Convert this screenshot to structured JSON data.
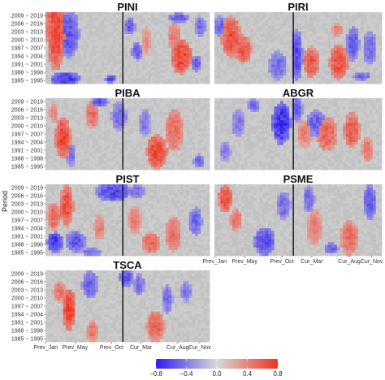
{
  "figure": {
    "ylabel": "Period",
    "background_color": "#ebebeb",
    "cell_gray": "#c8c8c8",
    "divider_color": "#000000"
  },
  "chart_data": {
    "type": "heatmap",
    "panels": [
      {
        "title": "PINI",
        "show_x_ticks": false,
        "show_y_ticks": true
      },
      {
        "title": "PIRI",
        "show_x_ticks": false,
        "show_y_ticks": false
      },
      {
        "title": "PIBA",
        "show_x_ticks": false,
        "show_y_ticks": true
      },
      {
        "title": "ABGR",
        "show_x_ticks": false,
        "show_y_ticks": false
      },
      {
        "title": "PIST",
        "show_x_ticks": false,
        "show_y_ticks": true
      },
      {
        "title": "PSME",
        "show_x_ticks": true,
        "show_y_ticks": false
      },
      {
        "title": "TSCA",
        "show_x_ticks": true,
        "show_y_ticks": true
      }
    ],
    "y_ticks": [
      "2009 ~ 2019",
      "2006 ~ 2016",
      "2003 ~ 2013",
      "2000 ~ 2010",
      "1997 ~ 2007",
      "1994 ~ 2004",
      "1991 ~ 2001",
      "1988 ~ 1998",
      "1985 ~ 1995"
    ],
    "x_ticks": [
      "Prev_Jan",
      "Prev_May",
      "Prev_Oct",
      "Cur_Mar",
      "Cur_Aug",
      "Cur_Nov"
    ],
    "x_positions": [
      0.02,
      2.52,
      5.65,
      8.15,
      11.28,
      13.16
    ],
    "x_range": [
      0,
      14
    ],
    "divider_x": 6.6,
    "blobs": {
      "PINI": [
        {
          "x": 0.9,
          "y": 0.15,
          "w": 0.9,
          "h": 0.55,
          "v": 0.7
        },
        {
          "x": 0.9,
          "y": 0.44,
          "w": 0.75,
          "h": 0.38,
          "v": 0.7
        },
        {
          "x": 2.0,
          "y": 0.3,
          "w": 0.9,
          "h": 0.35,
          "v": -0.6
        },
        {
          "x": 1.7,
          "y": 0.93,
          "w": 1.3,
          "h": 0.1,
          "v": -0.75
        },
        {
          "x": 5.6,
          "y": 0.93,
          "w": 0.5,
          "h": 0.06,
          "v": -0.7
        },
        {
          "x": 7.2,
          "y": 0.2,
          "w": 0.5,
          "h": 0.12,
          "v": -0.55
        },
        {
          "x": 7.8,
          "y": 0.55,
          "w": 0.5,
          "h": 0.13,
          "v": -0.55
        },
        {
          "x": 8.6,
          "y": 0.4,
          "w": 0.4,
          "h": 0.2,
          "v": 0.4
        },
        {
          "x": 11.6,
          "y": 0.62,
          "w": 0.9,
          "h": 0.25,
          "v": 0.75
        },
        {
          "x": 11.0,
          "y": 0.35,
          "w": 0.6,
          "h": 0.2,
          "v": 0.5
        },
        {
          "x": 11.4,
          "y": 0.08,
          "w": 0.9,
          "h": 0.07,
          "v": -0.6
        },
        {
          "x": 12.9,
          "y": 0.72,
          "w": 0.4,
          "h": 0.12,
          "v": -0.55
        },
        {
          "x": 13.2,
          "y": 0.2,
          "w": 0.5,
          "h": 0.15,
          "v": -0.5
        }
      ],
      "PIRI": [
        {
          "x": 1.4,
          "y": 0.35,
          "w": 0.85,
          "h": 0.3,
          "v": 0.7
        },
        {
          "x": 2.4,
          "y": 0.52,
          "w": 0.75,
          "h": 0.2,
          "v": 0.65
        },
        {
          "x": 0.5,
          "y": 0.2,
          "w": 0.6,
          "h": 0.15,
          "v": -0.5
        },
        {
          "x": 6.9,
          "y": 0.6,
          "w": 0.5,
          "h": 0.38,
          "v": -0.65
        },
        {
          "x": 5.3,
          "y": 0.75,
          "w": 0.8,
          "h": 0.2,
          "v": -0.5
        },
        {
          "x": 8.1,
          "y": 0.7,
          "w": 0.7,
          "h": 0.22,
          "v": 0.65
        },
        {
          "x": 10.4,
          "y": 0.7,
          "w": 0.8,
          "h": 0.25,
          "v": 0.7
        },
        {
          "x": 11.6,
          "y": 0.45,
          "w": 0.55,
          "h": 0.25,
          "v": -0.6
        },
        {
          "x": 13.0,
          "y": 0.5,
          "w": 0.6,
          "h": 0.25,
          "v": -0.5
        },
        {
          "x": 10.3,
          "y": 0.25,
          "w": 0.5,
          "h": 0.1,
          "v": 0.5
        },
        {
          "x": 12.3,
          "y": 0.9,
          "w": 0.8,
          "h": 0.06,
          "v": -0.55
        }
      ],
      "PIBA": [
        {
          "x": 1.5,
          "y": 0.55,
          "w": 0.7,
          "h": 0.3,
          "v": 0.75
        },
        {
          "x": 0.7,
          "y": 0.2,
          "w": 0.4,
          "h": 0.15,
          "v": 0.45
        },
        {
          "x": 2.2,
          "y": 0.8,
          "w": 0.4,
          "h": 0.18,
          "v": -0.5
        },
        {
          "x": 4.0,
          "y": 0.22,
          "w": 0.6,
          "h": 0.2,
          "v": 0.55
        },
        {
          "x": 4.6,
          "y": 0.05,
          "w": 0.8,
          "h": 0.07,
          "v": -0.6
        },
        {
          "x": 6.3,
          "y": 0.25,
          "w": 0.7,
          "h": 0.2,
          "v": -0.5
        },
        {
          "x": 9.5,
          "y": 0.75,
          "w": 0.9,
          "h": 0.25,
          "v": 0.75
        },
        {
          "x": 11.0,
          "y": 0.45,
          "w": 0.8,
          "h": 0.3,
          "v": 0.55
        },
        {
          "x": 8.5,
          "y": 0.35,
          "w": 0.5,
          "h": 0.2,
          "v": -0.45
        },
        {
          "x": 13.1,
          "y": 0.88,
          "w": 0.5,
          "h": 0.1,
          "v": -0.5
        }
      ],
      "ABGR": [
        {
          "x": 5.6,
          "y": 0.35,
          "w": 0.8,
          "h": 0.3,
          "v": -0.8
        },
        {
          "x": 6.9,
          "y": 0.15,
          "w": 0.5,
          "h": 0.2,
          "v": -0.55
        },
        {
          "x": 8.5,
          "y": 0.35,
          "w": 0.8,
          "h": 0.2,
          "v": -0.55
        },
        {
          "x": 7.6,
          "y": 0.5,
          "w": 0.7,
          "h": 0.2,
          "v": 0.45
        },
        {
          "x": 9.4,
          "y": 0.5,
          "w": 0.9,
          "h": 0.25,
          "v": 0.6
        },
        {
          "x": 11.5,
          "y": 0.45,
          "w": 0.7,
          "h": 0.25,
          "v": 0.65
        },
        {
          "x": 12.8,
          "y": 0.72,
          "w": 0.5,
          "h": 0.18,
          "v": 0.5
        },
        {
          "x": 2.0,
          "y": 0.35,
          "w": 0.6,
          "h": 0.2,
          "v": -0.45
        },
        {
          "x": 0.9,
          "y": 0.75,
          "w": 0.5,
          "h": 0.15,
          "v": -0.4
        },
        {
          "x": 3.3,
          "y": 0.1,
          "w": 0.5,
          "h": 0.1,
          "v": -0.5
        }
      ],
      "PIST": [
        {
          "x": 1.8,
          "y": 0.3,
          "w": 0.6,
          "h": 0.3,
          "v": 0.7
        },
        {
          "x": 0.7,
          "y": 0.45,
          "w": 0.6,
          "h": 0.2,
          "v": 0.6
        },
        {
          "x": 0.8,
          "y": 0.82,
          "w": 0.7,
          "h": 0.15,
          "v": -0.75
        },
        {
          "x": 2.6,
          "y": 0.8,
          "w": 0.9,
          "h": 0.15,
          "v": -0.6
        },
        {
          "x": 3.9,
          "y": 0.95,
          "w": 0.9,
          "h": 0.06,
          "v": -0.5
        },
        {
          "x": 5.8,
          "y": 0.1,
          "w": 1.5,
          "h": 0.15,
          "v": -0.65
        },
        {
          "x": 7.8,
          "y": 0.1,
          "w": 0.7,
          "h": 0.1,
          "v": -0.5
        },
        {
          "x": 4.6,
          "y": 0.6,
          "w": 0.5,
          "h": 0.18,
          "v": 0.45
        },
        {
          "x": 7.6,
          "y": 0.5,
          "w": 0.6,
          "h": 0.2,
          "v": 0.45
        },
        {
          "x": 9.0,
          "y": 0.82,
          "w": 0.8,
          "h": 0.15,
          "v": 0.6
        },
        {
          "x": 10.9,
          "y": 0.7,
          "w": 0.7,
          "h": 0.25,
          "v": 0.55
        },
        {
          "x": 12.8,
          "y": 0.52,
          "w": 0.6,
          "h": 0.2,
          "v": -0.55
        }
      ],
      "PSME": [
        {
          "x": 0.9,
          "y": 0.2,
          "w": 0.6,
          "h": 0.2,
          "v": 0.7
        },
        {
          "x": 1.8,
          "y": 0.5,
          "w": 0.5,
          "h": 0.15,
          "v": 0.55
        },
        {
          "x": 4.2,
          "y": 0.8,
          "w": 0.9,
          "h": 0.2,
          "v": -0.65
        },
        {
          "x": 5.8,
          "y": 0.3,
          "w": 0.6,
          "h": 0.2,
          "v": -0.5
        },
        {
          "x": 7.9,
          "y": 0.2,
          "w": 0.5,
          "h": 0.2,
          "v": -0.5
        },
        {
          "x": 8.4,
          "y": 0.6,
          "w": 0.7,
          "h": 0.25,
          "v": 0.45
        },
        {
          "x": 11.3,
          "y": 0.75,
          "w": 0.8,
          "h": 0.25,
          "v": 0.55
        },
        {
          "x": 13.0,
          "y": 0.25,
          "w": 0.55,
          "h": 0.25,
          "v": -0.6
        },
        {
          "x": 9.8,
          "y": 0.9,
          "w": 0.6,
          "h": 0.08,
          "v": -0.55
        }
      ],
      "TSCA": [
        {
          "x": 2.0,
          "y": 0.55,
          "w": 0.6,
          "h": 0.3,
          "v": 0.8
        },
        {
          "x": 1.2,
          "y": 0.3,
          "w": 0.6,
          "h": 0.15,
          "v": 0.5
        },
        {
          "x": 3.8,
          "y": 0.2,
          "w": 0.7,
          "h": 0.2,
          "v": -0.55
        },
        {
          "x": 4.0,
          "y": 0.85,
          "w": 0.5,
          "h": 0.15,
          "v": 0.5
        },
        {
          "x": 6.9,
          "y": 0.1,
          "w": 0.6,
          "h": 0.15,
          "v": -0.6
        },
        {
          "x": 8.0,
          "y": 0.2,
          "w": 0.5,
          "h": 0.15,
          "v": -0.5
        },
        {
          "x": 9.4,
          "y": 0.78,
          "w": 0.8,
          "h": 0.22,
          "v": 0.6
        },
        {
          "x": 10.4,
          "y": 0.4,
          "w": 0.5,
          "h": 0.2,
          "v": -0.5
        },
        {
          "x": 12.0,
          "y": 0.3,
          "w": 0.5,
          "h": 0.15,
          "v": -0.45
        }
      ]
    },
    "colorbar": {
      "range": [
        -0.8,
        0.8
      ],
      "ticks": [
        -0.8,
        -0.4,
        0.0,
        0.4,
        0.8
      ],
      "tick_labels": [
        "−0.8",
        "−0.4",
        "0.0",
        "0.4",
        "0.8"
      ],
      "low_color": "#2b1cf0",
      "mid_color": "#d8d8d8",
      "high_color": "#f0321e"
    }
  }
}
